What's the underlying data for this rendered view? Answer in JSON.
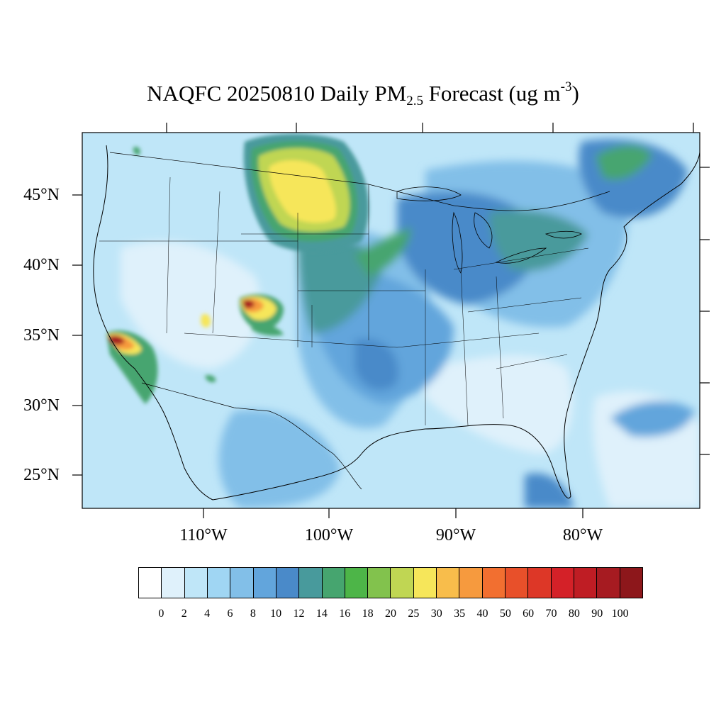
{
  "title": {
    "main": "NAQFC 20250810 Daily PM",
    "sub": "2.5",
    "mid": " Forecast (ug m",
    "sup": "-3",
    "end": ")"
  },
  "latitude_labels": [
    "45°N",
    "40°N",
    "35°N",
    "30°N",
    "25°N"
  ],
  "longitude_labels": [
    "110°W",
    "100°W",
    "90°W",
    "80°W"
  ],
  "colorbar": {
    "colors": [
      "#ffffff",
      "#dff1fb",
      "#bfe6f8",
      "#a0d6f3",
      "#82bfe8",
      "#62a5dc",
      "#4a8ac9",
      "#489a9c",
      "#46a56f",
      "#4db548",
      "#82c24d",
      "#c0d653",
      "#f6e65a",
      "#f8bd4b",
      "#f69a3e",
      "#f26f30",
      "#e8502a",
      "#dd3727",
      "#d42128",
      "#bf1d24",
      "#a61b21",
      "#8d171b"
    ],
    "tick_labels": [
      "0",
      "2",
      "4",
      "6",
      "8",
      "10",
      "12",
      "14",
      "16",
      "18",
      "20",
      "25",
      "30",
      "35",
      "40",
      "50",
      "60",
      "70",
      "80",
      "90",
      "100"
    ]
  },
  "map": {
    "background_color": "#bfe6f8",
    "plume_colors": {
      "light": "#dff1fb",
      "mid": "#82bfe8",
      "blue": "#62a5dc",
      "dark_blue": "#4a8ac9",
      "teal": "#489a9c",
      "green": "#46a56f",
      "bright_green": "#4db548",
      "yellow_green": "#c0d653",
      "yellow": "#f6e65a",
      "orange": "#f69a3e",
      "red": "#dd3727",
      "dark_red": "#a61b21"
    }
  }
}
